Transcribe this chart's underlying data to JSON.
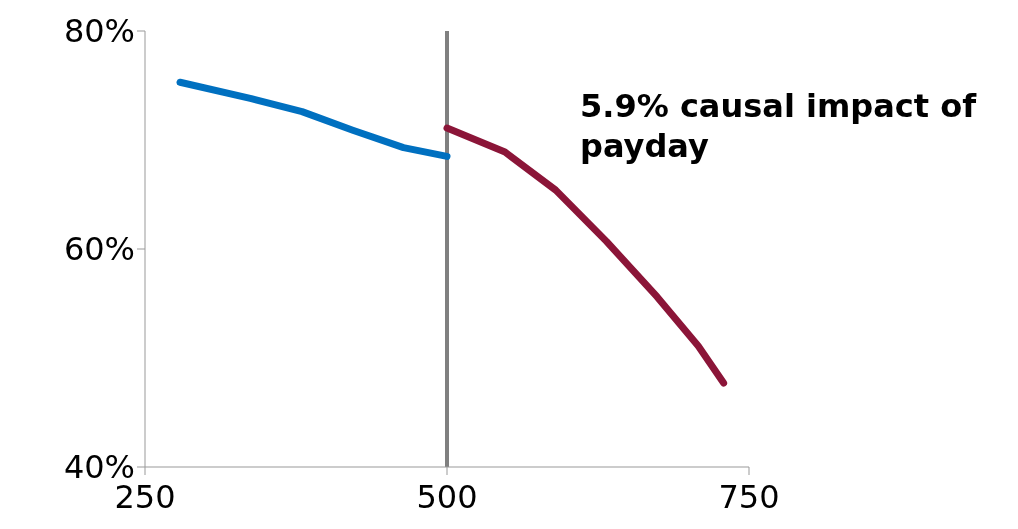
{
  "chart_data": {
    "type": "line",
    "series": [
      {
        "color": "#0070c0",
        "x": [
          279,
          338,
          380,
          422,
          464,
          500
        ],
        "values": [
          75.3,
          73.8,
          72.6,
          70.9,
          69.3,
          68.5
        ]
      },
      {
        "color": "#8b1538",
        "x": [
          500,
          548,
          590,
          632,
          674,
          708,
          729
        ],
        "values": [
          71.1,
          68.9,
          65.4,
          60.7,
          55.6,
          51.1,
          47.7
        ]
      }
    ],
    "xlim": [
      250,
      750
    ],
    "xticks": [
      250,
      500,
      750
    ],
    "ylim": [
      40,
      80
    ],
    "yticks": [
      {
        "value": 40,
        "label": "40%"
      },
      {
        "value": 60,
        "label": "60%"
      },
      {
        "value": 80,
        "label": "80%"
      }
    ],
    "ref_lines": [
      {
        "axis": "x",
        "value": 500,
        "color": "#808080"
      }
    ],
    "annotations": [
      "5.9% causal impact of payday"
    ],
    "grid": false,
    "legend": false,
    "marker": "none",
    "line_style": "solid"
  }
}
